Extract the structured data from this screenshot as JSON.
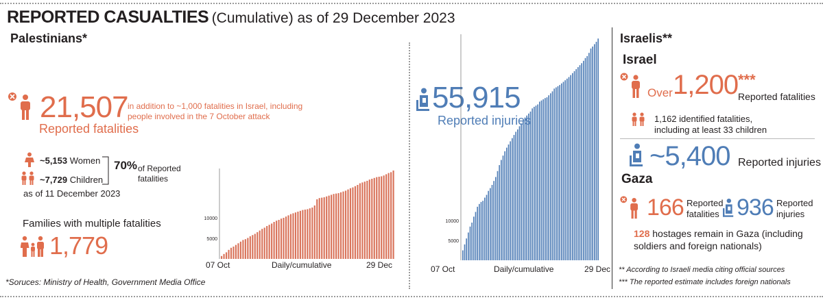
{
  "header": {
    "title_bold": "REPORTED CASUALTIES",
    "title_rest": "(Cumulative) as of 29 December 2023"
  },
  "palestinians": {
    "heading": "Palestinians*",
    "fatalities_value": "21,507",
    "fatalities_label": "Reported fatalities",
    "fatalities_note_line1": "in addition to ~1,000 fatalities in Israel, including",
    "fatalities_note_line2": "people involved in the 7 October attack",
    "women": "~5,153",
    "women_label": "Women",
    "children": "~7,729",
    "children_label": "Children",
    "as_of": "as of 11 December 2023",
    "share_pct": "70%",
    "share_label_line1": "of Reported",
    "share_label_line2": "fatalities",
    "families_heading": "Families with multiple fatalities",
    "families_value": "1,779",
    "injuries_value": "55,915",
    "injuries_label": "Reported injuries",
    "sources": "*Soruces: Ministry of Health, Government Media Office"
  },
  "israelis": {
    "heading": "Israelis**",
    "israel_heading": "Israel",
    "over": "Over",
    "fatalities_value": "1,200",
    "fatalities_stars": "***",
    "fatalities_label": "Reported fatalities",
    "identified_line1": "1,162 identified fatalities,",
    "identified_line2": "including at least 33 children",
    "injuries_value": "~5,400",
    "injuries_label": "Reported injuries",
    "gaza_heading": "Gaza",
    "gaza_fatalities_value": "166",
    "gaza_fatalities_label_line1": "Reported",
    "gaza_fatalities_label_line2": "fatalities",
    "gaza_injuries_value": "936",
    "gaza_injuries_label_line1": "Reported",
    "gaza_injuries_label_line2": "injuries",
    "hostages_value": "128",
    "hostages_line1": "hostages remain in Gaza (including",
    "hostages_line2": "soldiers and foreign nationals)",
    "footnote1": "** According to Israeli media citing official sources",
    "footnote2": "*** The reported estimate includes foreign nationals"
  },
  "colors": {
    "orange": "#e06d4c",
    "blue": "#4f7db6",
    "fatality_bars": "#d9735a",
    "injury_bars": "#4f7db6"
  },
  "icons": [
    "person-icon",
    "fatality-x-icon",
    "woman-icon",
    "children-icon",
    "family-icon",
    "injured-person-icon"
  ],
  "chart_data": [
    {
      "type": "bar",
      "series_color": "#d9735a",
      "x_start_label": "07 Oct",
      "x_end_label": "29 Dec",
      "xlabel": "Daily/cumulative",
      "ylabel": "",
      "y_ticks": [
        5000,
        10000
      ],
      "ylim": [
        0,
        22000
      ],
      "grid": false,
      "values": [
        700,
        1200,
        1600,
        2200,
        2700,
        3000,
        3400,
        3800,
        4200,
        4600,
        4800,
        5100,
        5500,
        5800,
        6100,
        6500,
        6900,
        7300,
        7600,
        8000,
        8300,
        8600,
        9000,
        9300,
        9500,
        9800,
        10000,
        10300,
        10600,
        10900,
        11100,
        11300,
        11500,
        11700,
        11900,
        12000,
        12100,
        12300,
        12500,
        13000,
        14500,
        14800,
        14900,
        15000,
        15200,
        15400,
        15600,
        15800,
        15900,
        16000,
        16200,
        16400,
        16600,
        16900,
        17200,
        17400,
        17700,
        18000,
        18400,
        18600,
        18800,
        19000,
        19300,
        19500,
        19700,
        19900,
        20000,
        20100,
        20300,
        20600,
        20900,
        21100,
        21507
      ]
    },
    {
      "type": "bar",
      "series_color": "#4f7db6",
      "x_start_label": "07 Oct",
      "x_end_label": "29 Dec",
      "xlabel": "Daily/cumulative",
      "ylabel": "",
      "y_ticks": [
        5000,
        10000
      ],
      "ylim": [
        0,
        57000
      ],
      "grid": false,
      "values": [
        2500,
        4000,
        5500,
        7000,
        8500,
        9500,
        11000,
        12200,
        13500,
        14200,
        14700,
        15000,
        15800,
        16500,
        17500,
        18200,
        19000,
        20000,
        21000,
        22500,
        24000,
        25300,
        26400,
        27500,
        28400,
        29200,
        30000,
        30800,
        31600,
        32400,
        33000,
        33800,
        34500,
        35300,
        36000,
        36500,
        37000,
        37500,
        38300,
        38700,
        39000,
        39300,
        40000,
        40300,
        40600,
        40900,
        41100,
        41600,
        42100,
        42600,
        43300,
        43600,
        43900,
        44200,
        44600,
        45000,
        45400,
        45800,
        46200,
        46700,
        47200,
        47700,
        48200,
        48700,
        49200,
        49700,
        50300,
        51000,
        51500,
        52300,
        53400,
        53900,
        54500,
        55100,
        55915
      ]
    }
  ]
}
